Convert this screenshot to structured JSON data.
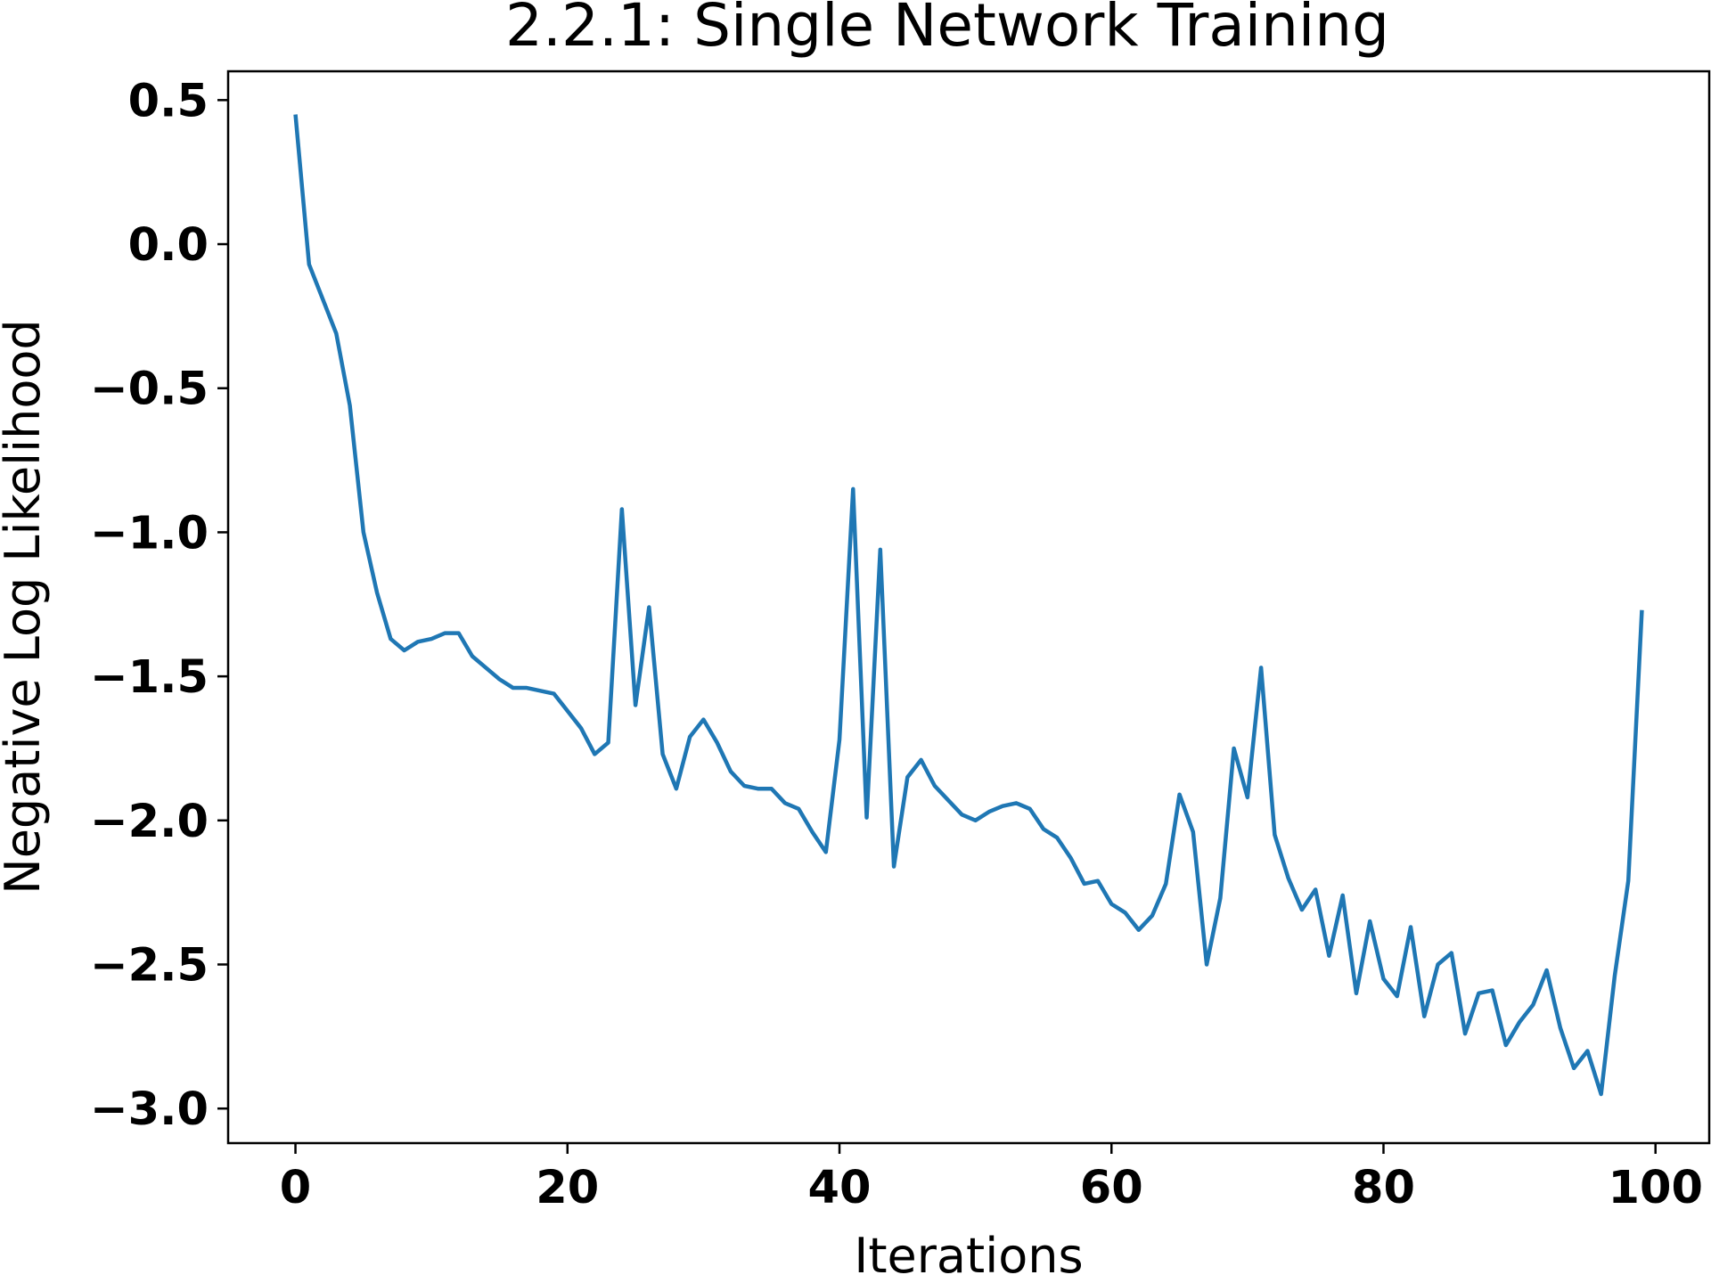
{
  "colors": {
    "series": "#1f77b4",
    "axis": "#000000",
    "background": "#ffffff"
  },
  "chart_data": {
    "type": "line",
    "title": "2.2.1: Single Network Training",
    "xlabel": "Iterations",
    "ylabel": "Negative Log Likelihood",
    "xlim": [
      -4.95,
      103.95
    ],
    "ylim": [
      -3.12,
      0.6
    ],
    "xticks": [
      0,
      20,
      40,
      60,
      80,
      100
    ],
    "xtick_labels": [
      "0",
      "20",
      "40",
      "60",
      "80",
      "100"
    ],
    "yticks": [
      0.5,
      0.0,
      -0.5,
      -1.0,
      -1.5,
      -2.0,
      -2.5,
      -3.0
    ],
    "ytick_labels": [
      "0.5",
      "0.0",
      "−0.5",
      "−1.0",
      "−1.5",
      "−2.0",
      "−2.5",
      "−3.0"
    ],
    "grid": false,
    "legend": false,
    "series": [
      {
        "x": [
          0,
          1,
          2,
          3,
          4,
          5,
          6,
          7,
          8,
          9,
          10,
          11,
          12,
          13,
          14,
          15,
          16,
          17,
          18,
          19,
          20,
          21,
          22,
          23,
          24,
          25,
          26,
          27,
          28,
          29,
          30,
          31,
          32,
          33,
          34,
          35,
          36,
          37,
          38,
          39,
          40,
          41,
          42,
          43,
          44,
          45,
          46,
          47,
          48,
          49,
          50,
          51,
          52,
          53,
          54,
          55,
          56,
          57,
          58,
          59,
          60,
          61,
          62,
          63,
          64,
          65,
          66,
          67,
          68,
          69,
          70,
          71,
          72,
          73,
          74,
          75,
          76,
          77,
          78,
          79,
          80,
          81,
          82,
          83,
          84,
          85,
          86,
          87,
          88,
          89,
          90,
          91,
          92,
          93,
          94,
          95,
          96,
          97,
          98,
          99
        ],
        "values": [
          0.45,
          -0.07,
          -0.19,
          -0.31,
          -0.56,
          -1.0,
          -1.21,
          -1.37,
          -1.41,
          -1.38,
          -1.37,
          -1.35,
          -1.35,
          -1.43,
          -1.47,
          -1.51,
          -1.54,
          -1.54,
          -1.55,
          -1.56,
          -1.62,
          -1.68,
          -1.77,
          -1.73,
          -0.92,
          -1.6,
          -1.26,
          -1.77,
          -1.89,
          -1.71,
          -1.65,
          -1.73,
          -1.83,
          -1.88,
          -1.89,
          -1.89,
          -1.94,
          -1.96,
          -2.04,
          -2.11,
          -1.72,
          -0.85,
          -1.99,
          -1.06,
          -2.16,
          -1.85,
          -1.79,
          -1.88,
          -1.93,
          -1.98,
          -2.0,
          -1.97,
          -1.95,
          -1.94,
          -1.96,
          -2.03,
          -2.06,
          -2.13,
          -2.22,
          -2.21,
          -2.29,
          -2.32,
          -2.38,
          -2.33,
          -2.22,
          -1.91,
          -2.04,
          -2.5,
          -2.27,
          -1.75,
          -1.92,
          -1.47,
          -2.05,
          -2.2,
          -2.31,
          -2.24,
          -2.47,
          -2.26,
          -2.6,
          -2.35,
          -2.55,
          -2.61,
          -2.37,
          -2.68,
          -2.5,
          -2.46,
          -2.74,
          -2.6,
          -2.59,
          -2.78,
          -2.7,
          -2.64,
          -2.52,
          -2.72,
          -2.86,
          -2.8,
          -2.95,
          -2.54,
          -2.21,
          -1.27
        ]
      }
    ]
  }
}
